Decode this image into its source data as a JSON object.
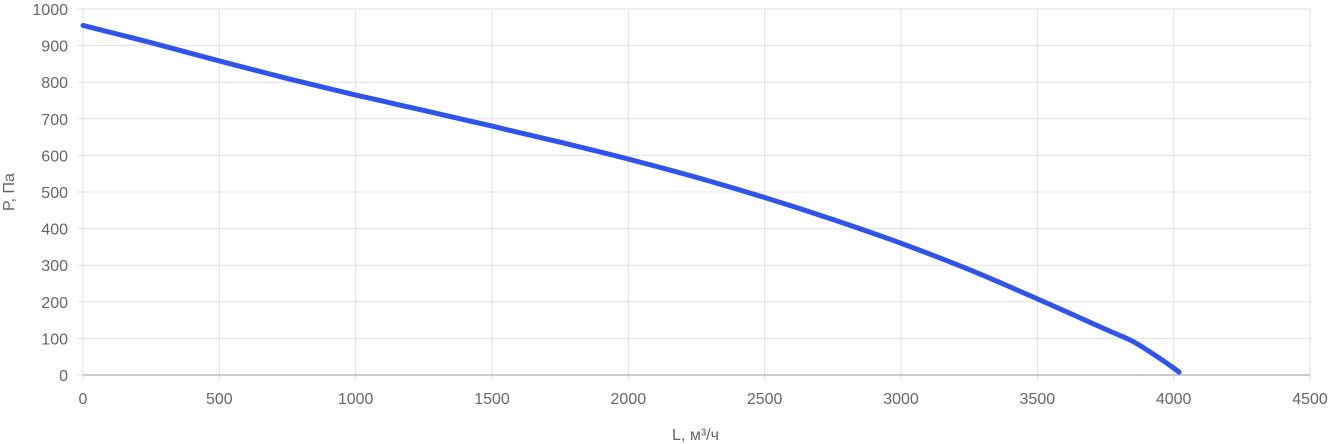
{
  "chart_data": {
    "type": "line",
    "xlabel": "L, м³/ч",
    "ylabel": "P, Па",
    "xlim": [
      0,
      4500
    ],
    "ylim": [
      0,
      1000
    ],
    "x_ticks": [
      "0",
      "500",
      "1000",
      "1500",
      "2000",
      "2500",
      "3000",
      "3500",
      "4000",
      "4500"
    ],
    "y_ticks": [
      "0",
      "100",
      "200",
      "300",
      "400",
      "500",
      "600",
      "700",
      "800",
      "900",
      "1000"
    ],
    "grid": true,
    "series": [
      {
        "color": "#2f54eb",
        "points": [
          [
            0,
            955
          ],
          [
            250,
            908
          ],
          [
            500,
            858
          ],
          [
            750,
            810
          ],
          [
            1000,
            765
          ],
          [
            1250,
            723
          ],
          [
            1500,
            680
          ],
          [
            1750,
            636
          ],
          [
            2000,
            590
          ],
          [
            2250,
            540
          ],
          [
            2500,
            485
          ],
          [
            2750,
            425
          ],
          [
            3000,
            360
          ],
          [
            3250,
            288
          ],
          [
            3500,
            208
          ],
          [
            3750,
            125
          ],
          [
            3850,
            92
          ],
          [
            3950,
            45
          ],
          [
            4020,
            8
          ]
        ]
      }
    ]
  }
}
